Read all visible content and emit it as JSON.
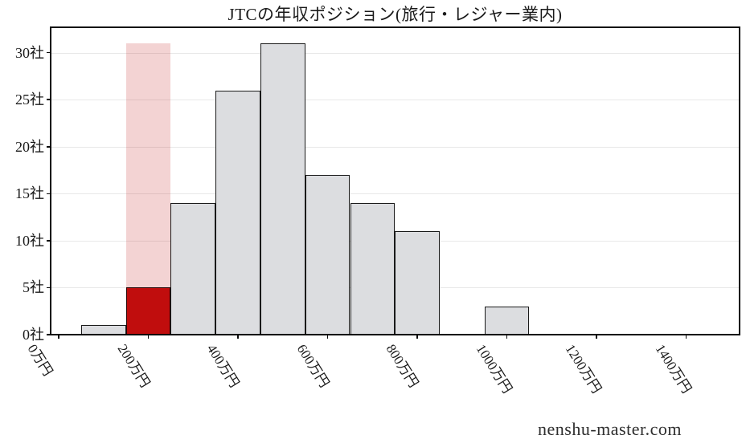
{
  "title": "JTCの年収ポジション(旅行・レジャー業内)",
  "watermark": "nenshu-master.com",
  "chart_data": {
    "type": "bar",
    "subtype": "histogram",
    "title": "JTCの年収ポジション(旅行・レジャー業内)",
    "x_unit": "万円",
    "y_unit": "社",
    "bin_width": 100,
    "bins": [
      {
        "range": [
          50,
          150
        ],
        "count": 1,
        "highlighted": false
      },
      {
        "range": [
          150,
          250
        ],
        "count": 5,
        "highlighted": true
      },
      {
        "range": [
          250,
          350
        ],
        "count": 14,
        "highlighted": false
      },
      {
        "range": [
          350,
          450
        ],
        "count": 26,
        "highlighted": false
      },
      {
        "range": [
          450,
          550
        ],
        "count": 31,
        "highlighted": false
      },
      {
        "range": [
          550,
          650
        ],
        "count": 17,
        "highlighted": false
      },
      {
        "range": [
          650,
          750
        ],
        "count": 14,
        "highlighted": false
      },
      {
        "range": [
          750,
          850
        ],
        "count": 11,
        "highlighted": false
      },
      {
        "range": [
          850,
          950
        ],
        "count": 0,
        "highlighted": false
      },
      {
        "range": [
          950,
          1050
        ],
        "count": 3,
        "highlighted": false
      }
    ],
    "highlight_band": {
      "range": [
        150,
        250
      ],
      "top": 31
    },
    "x_ticks": [
      {
        "value": 0,
        "label": "0万円"
      },
      {
        "value": 200,
        "label": "200万円"
      },
      {
        "value": 400,
        "label": "400万円"
      },
      {
        "value": 600,
        "label": "600万円"
      },
      {
        "value": 800,
        "label": "800万円"
      },
      {
        "value": 1000,
        "label": "1000万円"
      },
      {
        "value": 1200,
        "label": "1200万円"
      },
      {
        "value": 1400,
        "label": "1400万円"
      }
    ],
    "y_ticks": [
      {
        "value": 0,
        "label": "0社"
      },
      {
        "value": 5,
        "label": "5社"
      },
      {
        "value": 10,
        "label": "10社"
      },
      {
        "value": 15,
        "label": "15社"
      },
      {
        "value": 20,
        "label": "20社"
      },
      {
        "value": 25,
        "label": "25社"
      },
      {
        "value": 30,
        "label": "30社"
      }
    ],
    "xlim": [
      -18,
      1519
    ],
    "ylim": [
      0,
      32.7
    ],
    "grid": "horizontal",
    "legend": "none",
    "colors": {
      "page_bg": "#ffffff",
      "bar_fill": "#dcdde0",
      "bar_edge": "#1a1a1a",
      "highlight_fill": "#c00d0d",
      "highlight_edge": "#240404",
      "band_fill": "rgba(197,34,34,0.20)",
      "grid": "#e8e8e8",
      "axis": "#0a0a0a",
      "text": "#1a1a1a"
    }
  }
}
